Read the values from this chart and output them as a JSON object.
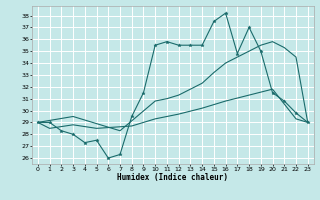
{
  "xlabel": "Humidex (Indice chaleur)",
  "bg_color": "#c5e8e8",
  "grid_color": "#ffffff",
  "line_color": "#1a6b6b",
  "xlim": [
    -0.5,
    23.5
  ],
  "ylim": [
    25.5,
    38.8
  ],
  "yticks": [
    26,
    27,
    28,
    29,
    30,
    31,
    32,
    33,
    34,
    35,
    36,
    37,
    38
  ],
  "xticks": [
    0,
    1,
    2,
    3,
    4,
    5,
    6,
    7,
    8,
    9,
    10,
    11,
    12,
    13,
    14,
    15,
    16,
    17,
    18,
    19,
    20,
    21,
    22,
    23
  ],
  "line1_x": [
    0,
    1,
    2,
    3,
    4,
    5,
    6,
    7,
    8,
    9,
    10,
    11,
    12,
    13,
    14,
    15,
    16,
    17,
    18,
    19,
    20,
    21,
    22,
    23
  ],
  "line1_y": [
    29.0,
    29.0,
    28.3,
    28.0,
    27.3,
    27.5,
    26.0,
    26.3,
    29.5,
    31.5,
    35.5,
    35.8,
    35.5,
    35.5,
    35.5,
    37.5,
    38.2,
    34.8,
    37.0,
    35.0,
    31.5,
    30.8,
    29.8,
    29.0
  ],
  "line2_x": [
    0,
    3,
    7,
    10,
    11,
    12,
    13,
    14,
    15,
    16,
    17,
    18,
    19,
    20,
    21,
    22,
    23
  ],
  "line2_y": [
    29.0,
    29.5,
    28.3,
    30.8,
    31.0,
    31.3,
    31.8,
    32.3,
    33.2,
    34.0,
    34.5,
    35.0,
    35.5,
    35.8,
    35.3,
    34.5,
    29.0
  ],
  "line3_x": [
    0,
    1,
    3,
    5,
    8,
    10,
    12,
    14,
    16,
    18,
    20,
    22,
    23
  ],
  "line3_y": [
    29.0,
    28.5,
    28.8,
    28.5,
    28.7,
    29.3,
    29.7,
    30.2,
    30.8,
    31.3,
    31.8,
    29.3,
    29.0
  ]
}
